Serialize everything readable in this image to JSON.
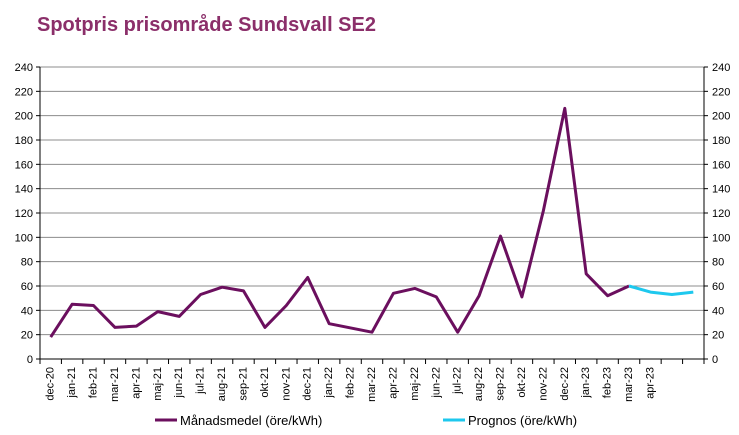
{
  "chart_data": {
    "type": "line",
    "title": "Spotpris prisområde Sundsvall SE2",
    "categories": [
      "dec-20",
      "jan-21",
      "feb-21",
      "mar-21",
      "apr-21",
      "maj-21",
      "jun-21",
      "jul-21",
      "aug-21",
      "sep-21",
      "okt-21",
      "nov-21",
      "dec-21",
      "jan-22",
      "feb-22",
      "mar-22",
      "apr-22",
      "maj-22",
      "jun-22",
      "jul-22",
      "aug-22",
      "sep-22",
      "okt-22",
      "nov-22",
      "dec-22",
      "jan-23",
      "feb-23",
      "mar-23",
      "apr-23",
      "",
      ""
    ],
    "ylim": [
      0,
      240
    ],
    "yticks": [
      0,
      20,
      40,
      60,
      80,
      100,
      120,
      140,
      160,
      180,
      200,
      220,
      240
    ],
    "grid": true,
    "legend_position": "bottom",
    "series": [
      {
        "name": "Månadsmedel (öre/kWh)",
        "color": "#6b0f5e",
        "values": [
          18,
          45,
          44,
          26,
          27,
          39,
          35,
          53,
          59,
          56,
          26,
          44,
          67,
          29,
          null,
          22,
          54,
          58,
          51,
          22,
          52,
          101,
          51,
          122,
          206,
          70,
          52,
          60,
          null,
          null,
          null
        ]
      },
      {
        "name": "Prognos (öre/kWh)",
        "color": "#1ec8ee",
        "values": [
          null,
          null,
          null,
          null,
          null,
          null,
          null,
          null,
          null,
          null,
          null,
          null,
          null,
          null,
          null,
          null,
          null,
          null,
          null,
          null,
          null,
          null,
          null,
          null,
          null,
          null,
          null,
          60,
          55,
          53,
          55
        ]
      }
    ]
  }
}
